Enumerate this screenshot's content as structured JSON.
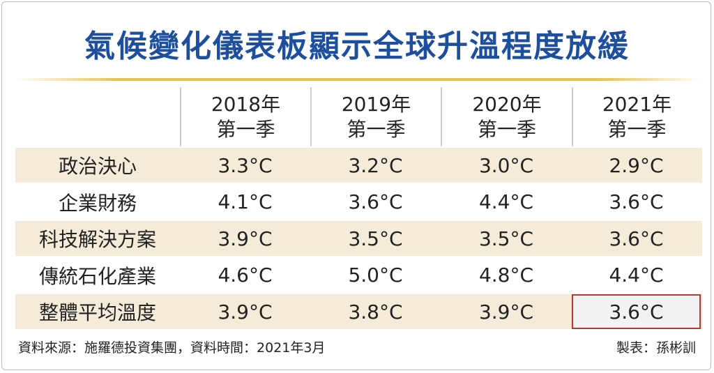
{
  "title": "氣候變化儀表板顯示全球升溫程度放緩",
  "table": {
    "header": [
      [
        "2018年",
        "第一季"
      ],
      [
        "2019年",
        "第一季"
      ],
      [
        "2020年",
        "第一季"
      ],
      [
        "2021年",
        "第一季"
      ]
    ],
    "rows": [
      [
        "政治決心",
        "3.3°C",
        "3.2°C",
        "3.0°C",
        "2.9°C"
      ],
      [
        "企業財務",
        "4.1°C",
        "3.6°C",
        "4.4°C",
        "3.6°C"
      ],
      [
        "科技解決方案",
        "3.9°C",
        "3.5°C",
        "3.5°C",
        "3.6°C"
      ],
      [
        "傳統石化產業",
        "4.6°C",
        "5.0°C",
        "4.8°C",
        "4.4°C"
      ],
      [
        "整體平均溫度",
        "3.9°C",
        "3.8°C",
        "3.9°C",
        "3.6°C"
      ]
    ]
  },
  "footer": {
    "source": "資料來源：施羅德投資集團，資料時間：2021年3月",
    "credit": "製表：孫彬訓"
  }
}
